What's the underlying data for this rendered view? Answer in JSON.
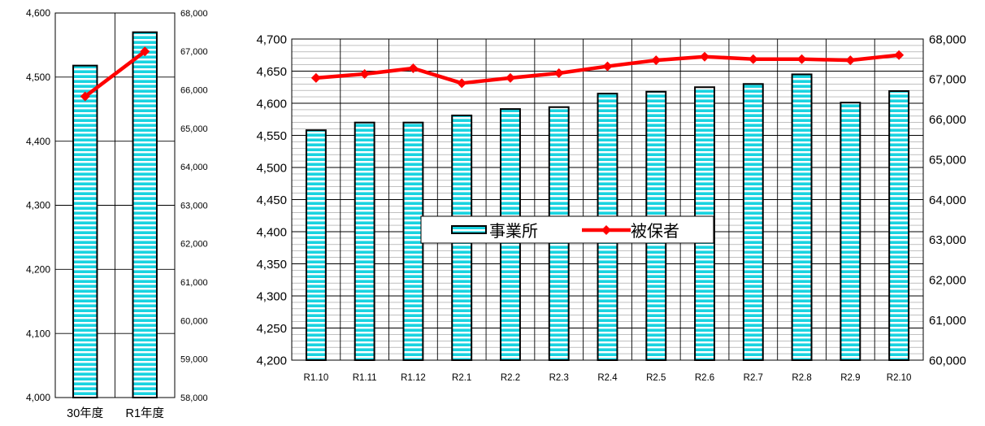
{
  "chart_data": [
    {
      "type": "bar+line",
      "categories": [
        "30年度",
        "R1年度"
      ],
      "series": [
        {
          "name": "事業所",
          "type": "bar",
          "axis": "left",
          "values": [
            4518,
            4570
          ]
        },
        {
          "name": "被保者",
          "type": "line",
          "axis": "right",
          "values": [
            65830,
            67000
          ]
        }
      ],
      "y_left": {
        "range": [
          4000,
          4600
        ],
        "ticks": [
          "4,000",
          "4,100",
          "4,200",
          "4,300",
          "4,400",
          "4,500",
          "4,600"
        ]
      },
      "y_right": {
        "range": [
          58000,
          68000
        ],
        "ticks": [
          "58,000",
          "59,000",
          "60,000",
          "61,000",
          "62,000",
          "63,000",
          "64,000",
          "65,000",
          "66,000",
          "67,000",
          "68,000"
        ]
      },
      "grid": true
    },
    {
      "type": "bar+line",
      "categories": [
        "R1.10",
        "R1.11",
        "R1.12",
        "R2.1",
        "R2.2",
        "R2.3",
        "R2.4",
        "R2.5",
        "R2.6",
        "R2.7",
        "R2.8",
        "R2.9",
        "R2.10"
      ],
      "series": [
        {
          "name": "事業所",
          "type": "bar",
          "axis": "left",
          "values": [
            4558,
            4570,
            4570,
            4581,
            4591,
            4594,
            4615,
            4618,
            4625,
            4630,
            4645,
            4601,
            4619
          ]
        },
        {
          "name": "被保者",
          "type": "line",
          "axis": "right",
          "values": [
            67030,
            67130,
            67270,
            66900,
            67030,
            67150,
            67320,
            67470,
            67560,
            67500,
            67500,
            67470,
            67600
          ]
        }
      ],
      "y_left": {
        "range": [
          4200,
          4700
        ],
        "ticks": [
          "4,200",
          "4,250",
          "4,300",
          "4,350",
          "4,400",
          "4,450",
          "4,500",
          "4,550",
          "4,600",
          "4,650",
          "4,700"
        ]
      },
      "y_right": {
        "range": [
          60000,
          68000
        ],
        "ticks": [
          "60,000",
          "61,000",
          "62,000",
          "63,000",
          "64,000",
          "65,000",
          "66,000",
          "67,000",
          "68,000"
        ]
      },
      "grid": true,
      "legend": {
        "position": "center",
        "entries": [
          "事業所",
          "被保者"
        ]
      }
    }
  ],
  "colors": {
    "bar_fill": "#19d3e0",
    "bar_stripe": "#ffffff",
    "line": "#ff0000",
    "grid": "#000000"
  }
}
